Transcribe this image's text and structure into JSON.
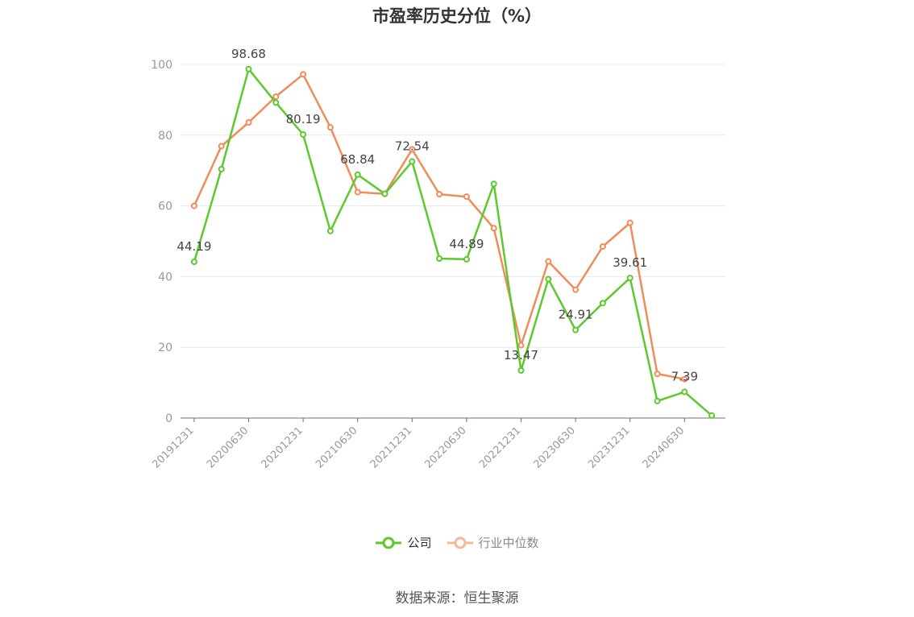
{
  "chart_data": {
    "type": "line",
    "title": "市盈率历史分位（%）",
    "x_tick_labels": [
      "20191231",
      "20200630",
      "20201231",
      "20210630",
      "20211231",
      "20220630",
      "20221231",
      "20230630",
      "20231231",
      "20240630"
    ],
    "x": [
      "20191231",
      "20200331",
      "20200630",
      "20200930",
      "20201231",
      "20210331",
      "20210630",
      "20210930",
      "20211231",
      "20220331",
      "20220630",
      "20220930",
      "20221231",
      "20230331",
      "20230630",
      "20230930",
      "20231231",
      "20240331",
      "20240630",
      "20240930"
    ],
    "ylim": [
      0,
      100
    ],
    "y_ticks": [
      0,
      20,
      40,
      60,
      80,
      100
    ],
    "grid": true,
    "legend_position": "bottom",
    "series": [
      {
        "name": "公司",
        "color": "#5cc92d",
        "values": [
          44.19,
          70.4,
          98.68,
          89.2,
          80.19,
          52.9,
          68.84,
          63.4,
          72.54,
          45.1,
          44.89,
          66.2,
          13.47,
          39.3,
          24.91,
          32.5,
          39.61,
          4.8,
          7.39,
          0.7
        ],
        "labels": [
          "44.19",
          "",
          "98.68",
          "",
          "80.19",
          "",
          "68.84",
          "",
          "72.54",
          "",
          "44.89",
          "",
          "13.47",
          "",
          "24.91",
          "",
          "39.61",
          "",
          "7.39",
          ""
        ]
      },
      {
        "name": "行业中位数",
        "color": "#f08c5a",
        "values": [
          60.0,
          76.9,
          83.6,
          90.9,
          97.2,
          82.2,
          63.9,
          63.4,
          76.0,
          63.3,
          62.6,
          53.7,
          20.6,
          44.3,
          36.3,
          48.5,
          55.2,
          12.5,
          11.0,
          null
        ]
      }
    ]
  },
  "legend": {
    "items": [
      {
        "label": "公司",
        "color": "#5cc92d",
        "text_color": "#333333"
      },
      {
        "label": "行业中位数",
        "color": "#f7b89a",
        "text_color": "#888888"
      }
    ]
  },
  "source": "数据来源：恒生聚源"
}
